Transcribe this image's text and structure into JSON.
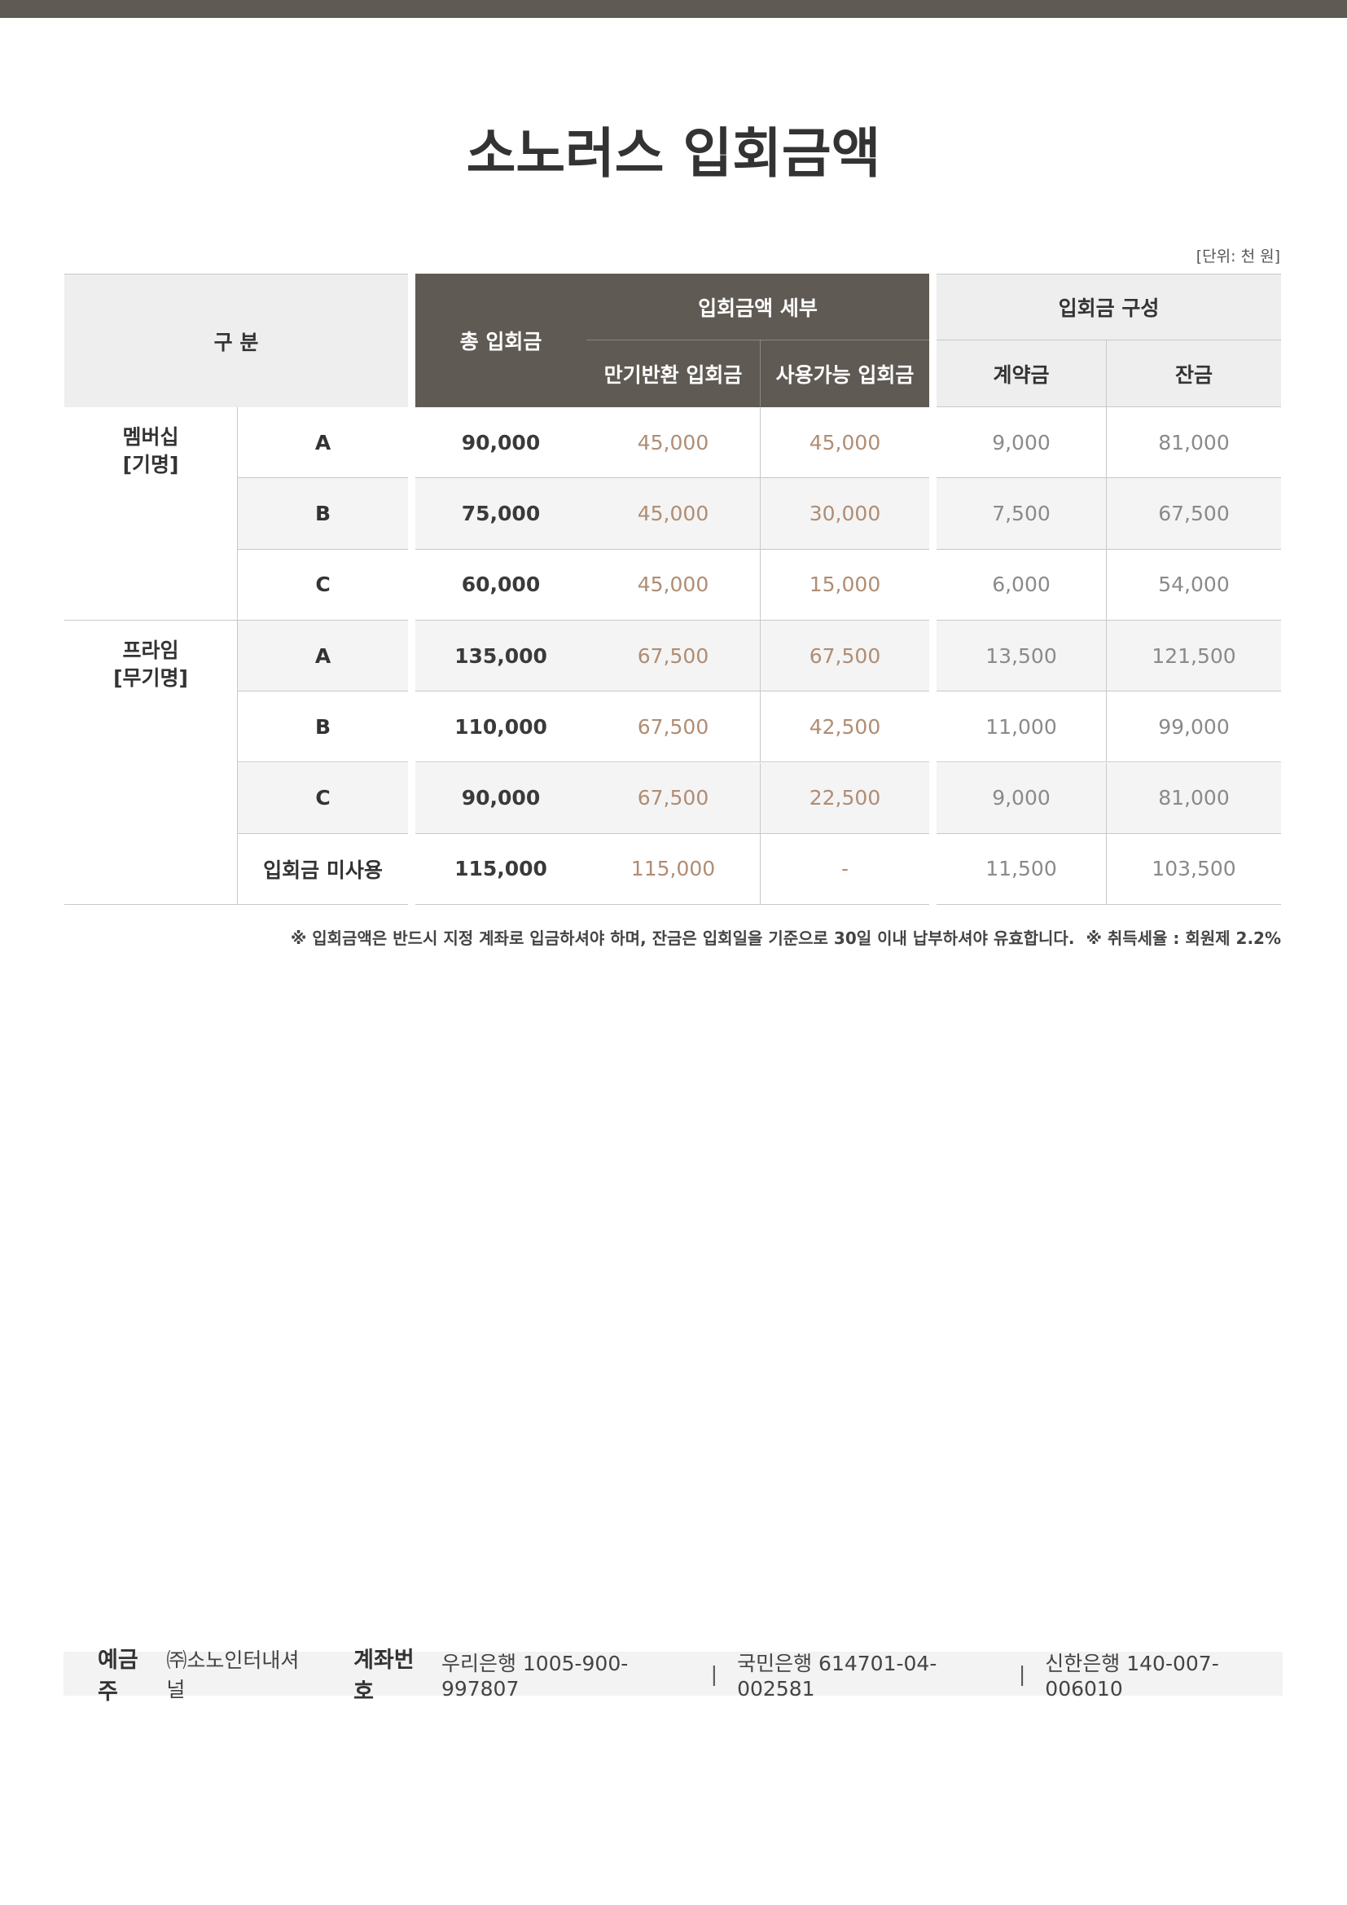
{
  "title": "소노러스 입회금액",
  "unit": "[단위: 천 원]",
  "table": {
    "headers": {
      "category": "구 분",
      "total": "총 입회금",
      "detail": "입회금액 세부",
      "detail_cols": [
        "만기반환 입회금",
        "사용가능 입회금"
      ],
      "composition": "입회금 구성",
      "composition_cols": [
        "계약금",
        "잔금"
      ]
    },
    "groups": [
      {
        "label": [
          "멤버십",
          "[기명]"
        ],
        "rows": [
          {
            "grade": "A",
            "cells": [
              "90,000",
              "45,000",
              "45,000",
              "9,000",
              "81,000"
            ]
          },
          {
            "grade": "B",
            "cells": [
              "75,000",
              "45,000",
              "30,000",
              "7,500",
              "67,500"
            ]
          },
          {
            "grade": "C",
            "cells": [
              "60,000",
              "45,000",
              "15,000",
              "6,000",
              "54,000"
            ]
          }
        ]
      },
      {
        "label": [
          "프라임",
          "[무기명]"
        ],
        "rows": [
          {
            "grade": "A",
            "cells": [
              "135,000",
              "67,500",
              "67,500",
              "13,500",
              "121,500"
            ]
          },
          {
            "grade": "B",
            "cells": [
              "110,000",
              "67,500",
              "42,500",
              "11,000",
              "99,000"
            ]
          },
          {
            "grade": "C",
            "cells": [
              "90,000",
              "67,500",
              "22,500",
              "9,000",
              "81,000"
            ]
          },
          {
            "grade": "입회금 미사용",
            "cells": [
              "115,000",
              "115,000",
              "-",
              "11,500",
              "103,500"
            ]
          }
        ]
      }
    ]
  },
  "notes": [
    "※ 입회금액은 반드시 지정 계좌로 입금하셔야 하며, 잔금은 입회일을 기준으로 30일 이내 납부하셔야 유효합니다.",
    "※ 취득세율 : 회원제 2.2%"
  ],
  "footer": {
    "holder_label": "예금주",
    "holder": "㈜소노인터내셔널",
    "account_label": "계좌번호",
    "accounts": [
      "우리은행 1005-900-997807",
      "국민은행 614701-04-002581",
      "신한은행 140-007-006010"
    ]
  }
}
